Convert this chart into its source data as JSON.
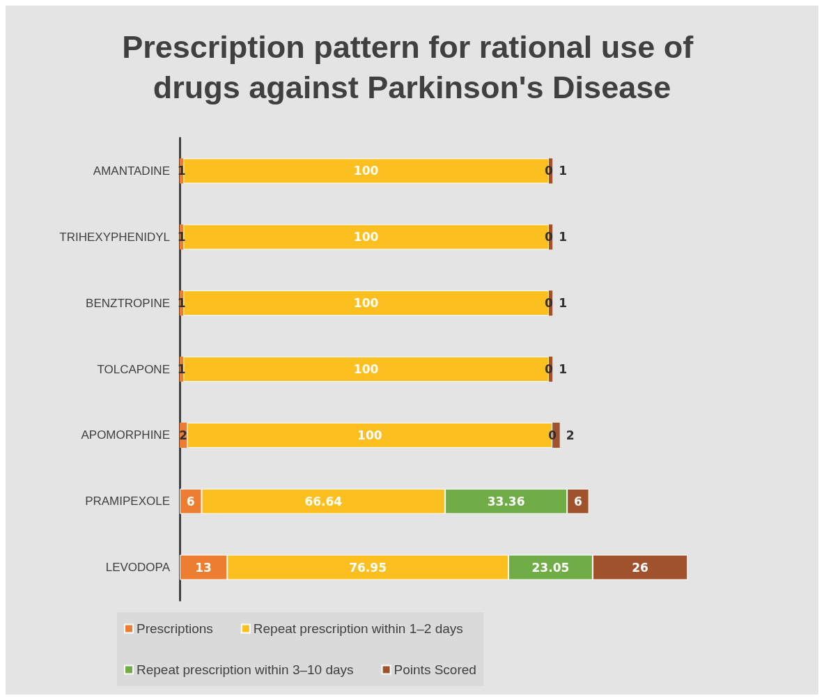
{
  "chart_data": {
    "type": "bar",
    "orientation": "horizontal",
    "stacked": true,
    "legend": "bottom",
    "title": "Prescription pattern for rational use of drugs against Parkinson's Disease",
    "categories": [
      "AMANTADINE",
      "TRIHEXYPHENIDYL",
      "BENZTROPINE",
      "TOLCAPONE",
      "APOMORPHINE",
      "PRAMIPEXOLE",
      "LEVODOPA"
    ],
    "series": [
      {
        "name": "Prescriptions",
        "color": "#ed7d31",
        "values": [
          1,
          1,
          1,
          1,
          2,
          6,
          13
        ],
        "value_labels": [
          "1",
          "1",
          "1",
          "1",
          "2",
          "6",
          "13"
        ]
      },
      {
        "name": "Repeat prescription within 1–2 days",
        "color": "#fbc020",
        "values": [
          100,
          100,
          100,
          100,
          100,
          66.64,
          76.95
        ],
        "value_labels": [
          "100",
          "100",
          "100",
          "100",
          "100",
          "66.64",
          "76.95"
        ]
      },
      {
        "name": "Repeat prescription within 3–10 days",
        "color": "#70ad47",
        "values": [
          0,
          0,
          0,
          0,
          0,
          33.36,
          23.05
        ],
        "value_labels": [
          "0",
          "0",
          "0",
          "0",
          "0",
          "33.36",
          "23.05"
        ]
      },
      {
        "name": "Points Scored",
        "color": "#a0522d",
        "values": [
          1,
          1,
          1,
          1,
          2,
          6,
          26
        ],
        "value_labels": [
          "1",
          "1",
          "1",
          "1",
          "2",
          "6",
          "26"
        ]
      }
    ]
  }
}
